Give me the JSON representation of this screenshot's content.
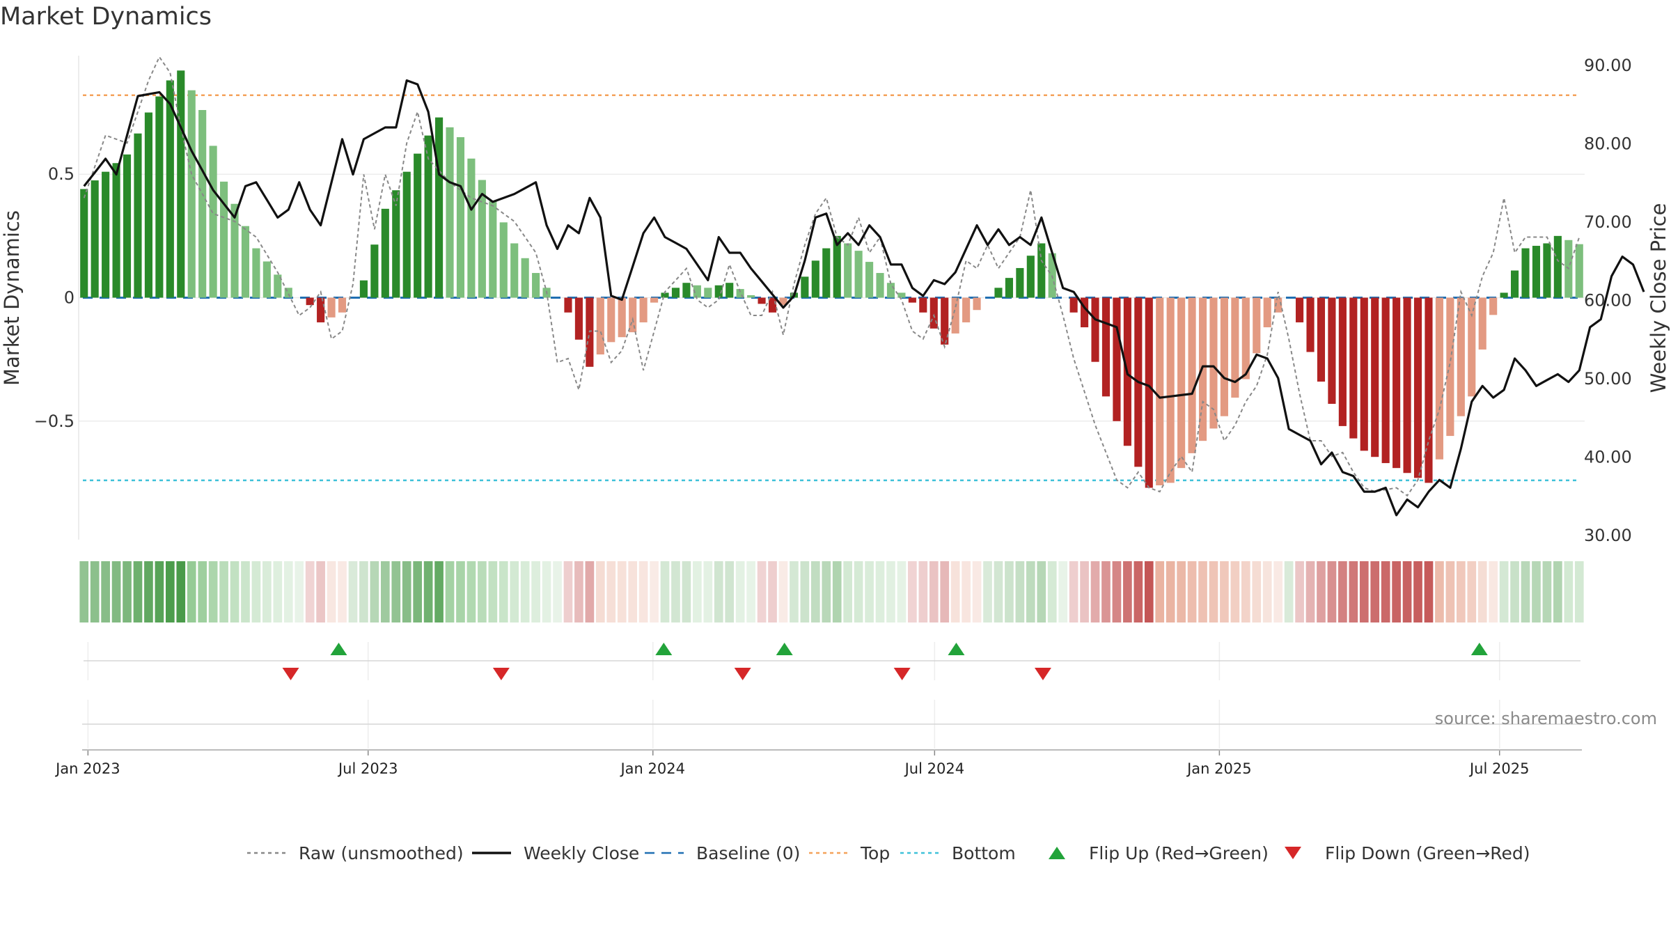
{
  "title": "Market Dynamics",
  "source": "source: sharemaestro.com",
  "chart_data": {
    "type": "bar",
    "title": "Market Dynamics",
    "ylabel_left": "Market Dynamics",
    "ylabel_right": "Weekly Close Price",
    "y_left_ticks": [
      0.5,
      0,
      -0.5
    ],
    "y_left_tick_labels": [
      "0.5",
      "0",
      "−0.5"
    ],
    "y_left_range": [
      -0.98,
      0.98
    ],
    "y_right_ticks": [
      90,
      80,
      70,
      60,
      50,
      40,
      30
    ],
    "y_right_tick_labels": [
      "90.00",
      "80.00",
      "70.00",
      "60.00",
      "50.00",
      "40.00",
      "30.00"
    ],
    "y_right_range": [
      30,
      90
    ],
    "x_start": "2022-12-26",
    "x_end": "2025-08-25",
    "x_ticks": [
      "2023-01-01",
      "2023-07-01",
      "2024-01-01",
      "2024-07-01",
      "2025-01-01",
      "2025-07-01"
    ],
    "x_tick_labels": [
      "Jan 2023",
      "Jul 2023",
      "Jan 2024",
      "Jul 2024",
      "Jan 2025",
      "Jul 2025"
    ],
    "top_level": 0.82,
    "bottom_level": -0.74,
    "baseline": 0,
    "colors": {
      "strong_up": "#2a8a2a",
      "weak_up": "#7dbf7d",
      "strong_down": "#b22222",
      "weak_down": "#e39a82",
      "close": "#111111",
      "raw": "#888888",
      "baseline": "#1f6fb2",
      "top": "#f4a25a",
      "bottom": "#3fc1d9",
      "flip_up": "#22a33a",
      "flip_down": "#d62728"
    },
    "dynamics_pts": [
      [
        0,
        0.44
      ],
      [
        4,
        0.58
      ],
      [
        6,
        0.75
      ],
      [
        8,
        0.88
      ],
      [
        9,
        0.92
      ],
      [
        11,
        0.76
      ],
      [
        13,
        0.47
      ],
      [
        16,
        0.2
      ],
      [
        19,
        0.04
      ],
      [
        20,
        0.0
      ],
      [
        21,
        -0.03
      ],
      [
        22,
        -0.1
      ],
      [
        24,
        -0.06
      ],
      [
        25,
        0.0
      ],
      [
        26,
        0.07
      ],
      [
        28,
        0.36
      ],
      [
        30,
        0.51
      ],
      [
        33,
        0.73
      ],
      [
        35,
        0.65
      ],
      [
        38,
        0.39
      ],
      [
        40,
        0.22
      ],
      [
        43,
        0.04
      ],
      [
        44,
        0.0
      ],
      [
        45,
        -0.06
      ],
      [
        47,
        -0.28
      ],
      [
        49,
        -0.18
      ],
      [
        51,
        -0.14
      ],
      [
        52,
        -0.1
      ],
      [
        53,
        -0.02
      ],
      [
        54,
        0.02
      ],
      [
        56,
        0.06
      ],
      [
        58,
        0.04
      ],
      [
        60,
        0.06
      ],
      [
        62,
        0.01
      ],
      [
        64,
        -0.06
      ],
      [
        65,
        -0.03
      ],
      [
        66,
        0.02
      ],
      [
        68,
        0.15
      ],
      [
        70,
        0.25
      ],
      [
        72,
        0.19
      ],
      [
        74,
        0.1
      ],
      [
        76,
        0.02
      ],
      [
        78,
        -0.06
      ],
      [
        80,
        -0.19
      ],
      [
        82,
        -0.1
      ],
      [
        84,
        0.0
      ],
      [
        85,
        0.04
      ],
      [
        87,
        0.12
      ],
      [
        89,
        0.22
      ],
      [
        90,
        0.18
      ],
      [
        91,
        0.0
      ],
      [
        93,
        -0.12
      ],
      [
        95,
        -0.4
      ],
      [
        97,
        -0.6
      ],
      [
        99,
        -0.77
      ],
      [
        101,
        -0.75
      ],
      [
        103,
        -0.63
      ],
      [
        106,
        -0.48
      ],
      [
        108,
        -0.33
      ],
      [
        110,
        -0.12
      ],
      [
        112,
        0.0
      ],
      [
        113,
        -0.1
      ],
      [
        115,
        -0.34
      ],
      [
        117,
        -0.52
      ],
      [
        119,
        -0.62
      ],
      [
        121,
        -0.67
      ],
      [
        123,
        -0.71
      ],
      [
        125,
        -0.75
      ],
      [
        127,
        -0.56
      ],
      [
        129,
        -0.4
      ],
      [
        130,
        -0.21
      ],
      [
        131,
        -0.07
      ],
      [
        132,
        0.02
      ],
      [
        134,
        0.2
      ],
      [
        136,
        0.22
      ],
      [
        137,
        0.25
      ],
      [
        140,
        0.2
      ],
      [
        142,
        0.22
      ],
      [
        143,
        0.25
      ],
      [
        145,
        0.38
      ],
      [
        146,
        0.45
      ],
      [
        147,
        0.45
      ],
      [
        148,
        0.39
      ]
    ],
    "close_pts": [
      [
        0,
        74.5
      ],
      [
        2,
        78
      ],
      [
        3,
        76
      ],
      [
        5,
        86
      ],
      [
        7,
        86.5
      ],
      [
        8,
        85
      ],
      [
        10,
        79
      ],
      [
        12,
        74
      ],
      [
        14,
        70.5
      ],
      [
        15,
        74.5
      ],
      [
        16,
        75
      ],
      [
        18,
        70.5
      ],
      [
        19,
        71.5
      ],
      [
        20,
        75
      ],
      [
        21,
        71.5
      ],
      [
        22,
        69.5
      ],
      [
        24,
        80.5
      ],
      [
        25,
        76
      ],
      [
        26,
        80.5
      ],
      [
        28,
        82
      ],
      [
        29,
        82
      ],
      [
        30,
        88
      ],
      [
        31,
        87.5
      ],
      [
        32,
        84
      ],
      [
        33,
        76
      ],
      [
        34,
        75
      ],
      [
        35,
        74.5
      ],
      [
        36,
        71.5
      ],
      [
        37,
        73.5
      ],
      [
        38,
        72.5
      ],
      [
        40,
        73.5
      ],
      [
        42,
        75
      ],
      [
        43,
        69.5
      ],
      [
        44,
        66.5
      ],
      [
        45,
        69.5
      ],
      [
        46,
        68.5
      ],
      [
        47,
        73
      ],
      [
        48,
        70.5
      ],
      [
        49,
        60.5
      ],
      [
        50,
        60
      ],
      [
        52,
        68.5
      ],
      [
        53,
        70.5
      ],
      [
        54,
        68
      ],
      [
        56,
        66.5
      ],
      [
        57,
        64.5
      ],
      [
        58,
        62.5
      ],
      [
        59,
        68
      ],
      [
        60,
        66
      ],
      [
        61,
        66
      ],
      [
        62,
        64
      ],
      [
        65,
        59
      ],
      [
        66,
        60.5
      ],
      [
        67,
        65
      ],
      [
        68,
        70.5
      ],
      [
        69,
        71
      ],
      [
        70,
        67
      ],
      [
        71,
        68.5
      ],
      [
        72,
        67
      ],
      [
        73,
        69.5
      ],
      [
        74,
        68
      ],
      [
        75,
        64.5
      ],
      [
        76,
        64.5
      ],
      [
        77,
        61.5
      ],
      [
        78,
        60.5
      ],
      [
        79,
        62.5
      ],
      [
        80,
        62
      ],
      [
        81,
        63.5
      ],
      [
        83,
        69.5
      ],
      [
        84,
        67
      ],
      [
        85,
        69
      ],
      [
        86,
        67
      ],
      [
        87,
        68
      ],
      [
        88,
        67
      ],
      [
        89,
        70.5
      ],
      [
        90,
        66
      ],
      [
        91,
        61.5
      ],
      [
        92,
        61
      ],
      [
        93,
        59
      ],
      [
        94,
        57.5
      ],
      [
        96,
        56.5
      ],
      [
        97,
        50.5
      ],
      [
        98,
        49.5
      ],
      [
        99,
        49
      ],
      [
        100,
        47.5
      ],
      [
        103,
        48
      ],
      [
        104,
        51.5
      ],
      [
        105,
        51.5
      ],
      [
        106,
        50
      ],
      [
        107,
        49.5
      ],
      [
        108,
        50.5
      ],
      [
        109,
        53
      ],
      [
        110,
        52.5
      ],
      [
        111,
        50
      ],
      [
        112,
        43.5
      ],
      [
        114,
        42
      ],
      [
        115,
        39
      ],
      [
        116,
        40.5
      ],
      [
        117,
        38
      ],
      [
        118,
        37.5
      ],
      [
        119,
        35.5
      ],
      [
        120,
        35.5
      ],
      [
        121,
        36
      ],
      [
        122,
        32.5
      ],
      [
        123,
        34.5
      ],
      [
        124,
        33.5
      ],
      [
        125,
        35.5
      ],
      [
        126,
        37
      ],
      [
        127,
        36
      ],
      [
        128,
        41
      ],
      [
        129,
        47
      ],
      [
        130,
        49
      ],
      [
        131,
        47.5
      ],
      [
        132,
        48.5
      ],
      [
        133,
        52.5
      ],
      [
        134,
        51
      ],
      [
        135,
        49
      ],
      [
        137,
        50.5
      ],
      [
        138,
        49.5
      ],
      [
        139,
        51
      ],
      [
        140,
        56.5
      ],
      [
        141,
        57.5
      ],
      [
        142,
        63
      ],
      [
        143,
        65.5
      ],
      [
        144,
        64.5
      ],
      [
        145,
        61
      ]
    ],
    "raw_pts": [
      [
        0,
        73
      ],
      [
        2,
        81
      ],
      [
        4,
        80
      ],
      [
        6,
        88
      ],
      [
        7,
        91
      ],
      [
        8,
        89
      ],
      [
        9,
        82
      ],
      [
        10,
        76
      ],
      [
        12,
        71
      ],
      [
        14,
        70
      ],
      [
        16,
        68
      ],
      [
        18,
        63.5
      ],
      [
        20,
        58
      ],
      [
        21,
        59
      ],
      [
        22,
        61
      ],
      [
        23,
        55
      ],
      [
        24,
        56
      ],
      [
        25,
        62
      ],
      [
        26,
        76
      ],
      [
        27,
        69
      ],
      [
        28,
        76
      ],
      [
        29,
        72
      ],
      [
        30,
        80
      ],
      [
        31,
        84
      ],
      [
        32,
        78
      ],
      [
        34,
        75
      ],
      [
        36,
        73
      ],
      [
        38,
        72
      ],
      [
        40,
        70
      ],
      [
        42,
        66
      ],
      [
        43,
        61
      ],
      [
        44,
        52
      ],
      [
        45,
        52.5
      ],
      [
        46,
        48.5
      ],
      [
        47,
        56
      ],
      [
        48,
        56
      ],
      [
        49,
        52
      ],
      [
        50,
        53.5
      ],
      [
        51,
        57.5
      ],
      [
        52,
        51
      ],
      [
        53,
        56
      ],
      [
        54,
        61
      ],
      [
        56,
        64
      ],
      [
        57,
        60
      ],
      [
        58,
        59
      ],
      [
        59,
        60
      ],
      [
        60,
        64.5
      ],
      [
        61,
        61
      ],
      [
        62,
        58
      ],
      [
        63,
        58
      ],
      [
        64,
        61
      ],
      [
        65,
        55.5
      ],
      [
        66,
        62
      ],
      [
        67,
        67
      ],
      [
        68,
        71
      ],
      [
        69,
        73
      ],
      [
        70,
        68
      ],
      [
        71,
        67
      ],
      [
        72,
        70.5
      ],
      [
        73,
        66
      ],
      [
        74,
        68
      ],
      [
        75,
        62
      ],
      [
        76,
        60
      ],
      [
        77,
        56
      ],
      [
        78,
        55
      ],
      [
        79,
        58
      ],
      [
        80,
        54
      ],
      [
        81,
        59
      ],
      [
        82,
        65
      ],
      [
        83,
        64
      ],
      [
        84,
        67
      ],
      [
        85,
        64
      ],
      [
        86,
        66
      ],
      [
        87,
        68
      ],
      [
        88,
        74
      ],
      [
        89,
        65
      ],
      [
        90,
        63
      ],
      [
        91,
        58
      ],
      [
        92,
        52.5
      ],
      [
        94,
        44
      ],
      [
        96,
        37
      ],
      [
        97,
        36
      ],
      [
        98,
        38
      ],
      [
        99,
        36
      ],
      [
        100,
        35.5
      ],
      [
        101,
        38
      ],
      [
        102,
        40
      ],
      [
        103,
        38
      ],
      [
        104,
        47
      ],
      [
        105,
        46
      ],
      [
        106,
        42
      ],
      [
        107,
        44
      ],
      [
        108,
        47
      ],
      [
        109,
        49
      ],
      [
        110,
        53
      ],
      [
        111,
        61
      ],
      [
        112,
        55
      ],
      [
        113,
        48
      ],
      [
        114,
        42
      ],
      [
        115,
        42
      ],
      [
        116,
        40
      ],
      [
        117,
        40.5
      ],
      [
        118,
        38
      ],
      [
        119,
        36
      ],
      [
        120,
        35.5
      ],
      [
        122,
        36
      ],
      [
        123,
        35
      ],
      [
        124,
        37
      ],
      [
        125,
        42
      ],
      [
        126,
        46
      ],
      [
        127,
        52
      ],
      [
        128,
        61
      ],
      [
        129,
        58
      ],
      [
        130,
        63
      ],
      [
        131,
        66
      ],
      [
        132,
        73
      ],
      [
        133,
        66
      ],
      [
        134,
        68
      ],
      [
        136,
        68
      ],
      [
        137,
        65
      ],
      [
        138,
        64
      ],
      [
        139,
        68
      ],
      [
        140,
        74
      ],
      [
        141,
        72
      ],
      [
        142,
        76
      ],
      [
        143,
        72
      ],
      [
        144,
        70
      ],
      [
        145,
        68
      ],
      [
        146,
        64
      ]
    ],
    "flips_up": [
      "2023-06-12",
      "2024-01-08",
      "2024-03-26",
      "2024-07-15",
      "2025-06-18"
    ],
    "flips_down": [
      "2023-05-12",
      "2023-09-25",
      "2024-02-28",
      "2024-06-10",
      "2024-09-09"
    ]
  },
  "legend": [
    {
      "key": "raw",
      "label": "Raw (unsmoothed)",
      "symbol": "dotted-line",
      "color": "#888888"
    },
    {
      "key": "close",
      "label": "Weekly Close",
      "symbol": "solid-line",
      "color": "#111111"
    },
    {
      "key": "baseline",
      "label": "Baseline (0)",
      "symbol": "dashed-line",
      "color": "#1f6fb2"
    },
    {
      "key": "top",
      "label": "Top",
      "symbol": "dotted-line",
      "color": "#f4a25a"
    },
    {
      "key": "bottom",
      "label": "Bottom",
      "symbol": "dotted-line",
      "color": "#3fc1d9"
    },
    {
      "key": "flip_up",
      "label": "Flip Up (Red→Green)",
      "symbol": "triangle-up",
      "color": "#22a33a"
    },
    {
      "key": "flip_down",
      "label": "Flip Down (Green→Red)",
      "symbol": "triangle-down",
      "color": "#d62728"
    }
  ]
}
